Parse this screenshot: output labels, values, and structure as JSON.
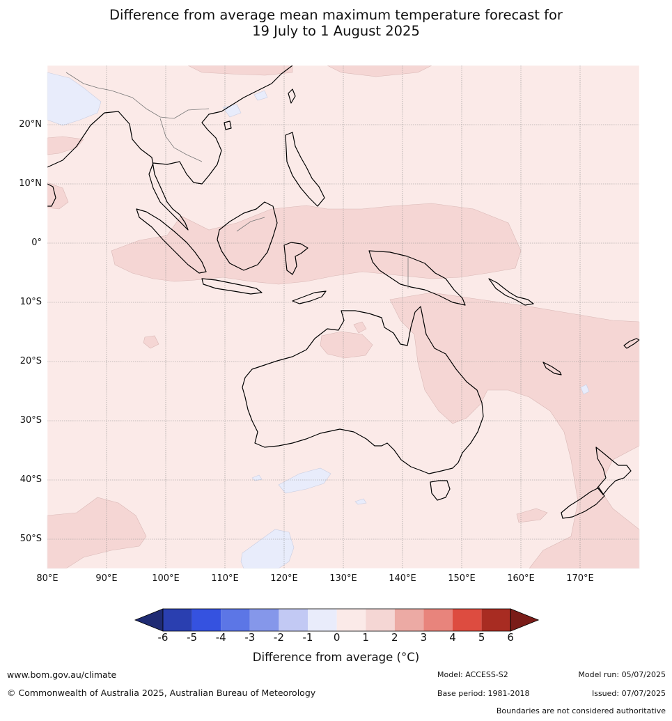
{
  "title": {
    "line1": "Difference from average mean maximum temperature forecast for",
    "line2": "19 July to 1 August 2025"
  },
  "map": {
    "lat_labels": [
      "20°N",
      "10°N",
      "0°",
      "10°S",
      "20°S",
      "30°S",
      "40°S",
      "50°S"
    ],
    "lon_labels": [
      "80°E",
      "90°E",
      "100°E",
      "110°E",
      "120°E",
      "130°E",
      "140°E",
      "150°E",
      "160°E",
      "170°E"
    ],
    "background_class_color": "#fbeae8",
    "warm_class_color": "#f5d6d4",
    "cool_class_color": "#e8ecfb"
  },
  "colorbar": {
    "ticks": [
      "-6",
      "-5",
      "-4",
      "-3",
      "-2",
      "-1",
      "0",
      "1",
      "2",
      "3",
      "4",
      "5",
      "6"
    ],
    "colors": [
      "#1f2b73",
      "#2a3fb0",
      "#3552e0",
      "#5c76e6",
      "#8597ea",
      "#c2c9f4",
      "#e9ecfb",
      "#fbeae8",
      "#f5d6d4",
      "#ecaaa4",
      "#e8847c",
      "#dd4c40",
      "#a82c22",
      "#7a1c18"
    ],
    "title": "Difference from average (°C)"
  },
  "footer": {
    "website": "www.bom.gov.au/climate",
    "copyright": "© Commonwealth of Australia 2025, Australian Bureau of Meteorology",
    "model": "Model: ACCESS-S2",
    "base_period": "Base period: 1981-2018",
    "model_run": "Model run: 05/07/2025",
    "issued": "Issued: 07/07/2025",
    "disclaimer": "Boundaries are not considered authoritative"
  }
}
